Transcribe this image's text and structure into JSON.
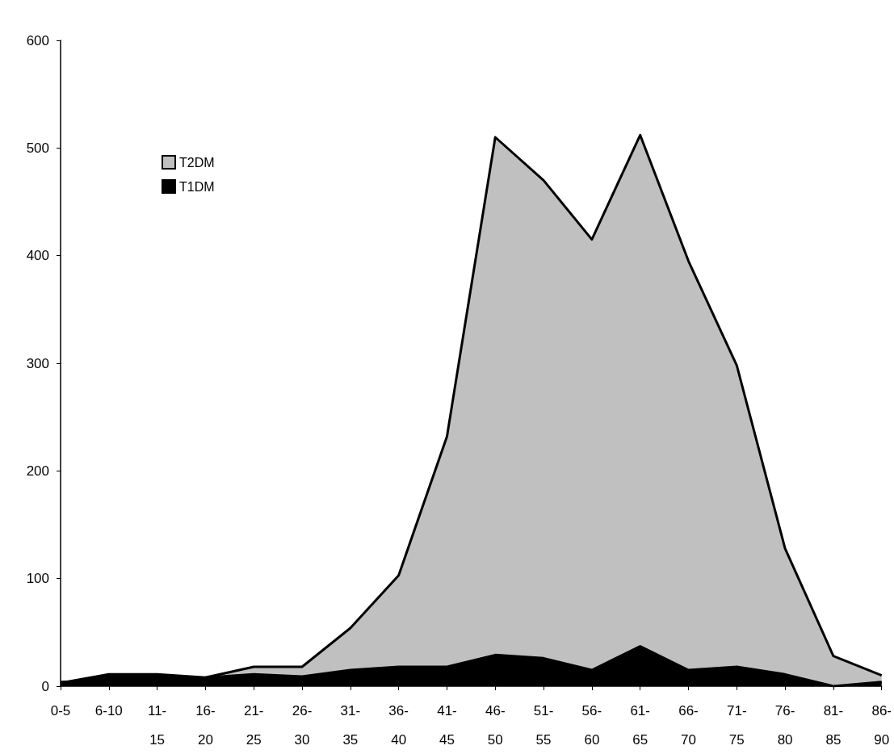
{
  "chart_data": {
    "type": "area",
    "categories": [
      "0-5",
      "6-10",
      "11-15",
      "16-20",
      "21-25",
      "26-30",
      "31-35",
      "36-40",
      "41-45",
      "46-50",
      "51-55",
      "56-60",
      "61-65",
      "66-70",
      "71-75",
      "76-80",
      "81-85",
      "86-90"
    ],
    "series": [
      {
        "name": "T2DM",
        "color": "#c0c0c0",
        "values": [
          4,
          null,
          null,
          8,
          18,
          18,
          54,
          103,
          232,
          510,
          470,
          415,
          512,
          395,
          298,
          128,
          28,
          10
        ]
      },
      {
        "name": "T1DM",
        "color": "#000000",
        "values": [
          3,
          11,
          11,
          8,
          11,
          9,
          15,
          18,
          18,
          29,
          26,
          15,
          37,
          15,
          18,
          11,
          0,
          4
        ]
      }
    ],
    "ylim": [
      0,
      600
    ],
    "yticks": [
      0,
      100,
      200,
      300,
      400,
      500,
      600
    ],
    "grid": false,
    "legend": "top left",
    "marker": "none",
    "line_style": "solid"
  }
}
